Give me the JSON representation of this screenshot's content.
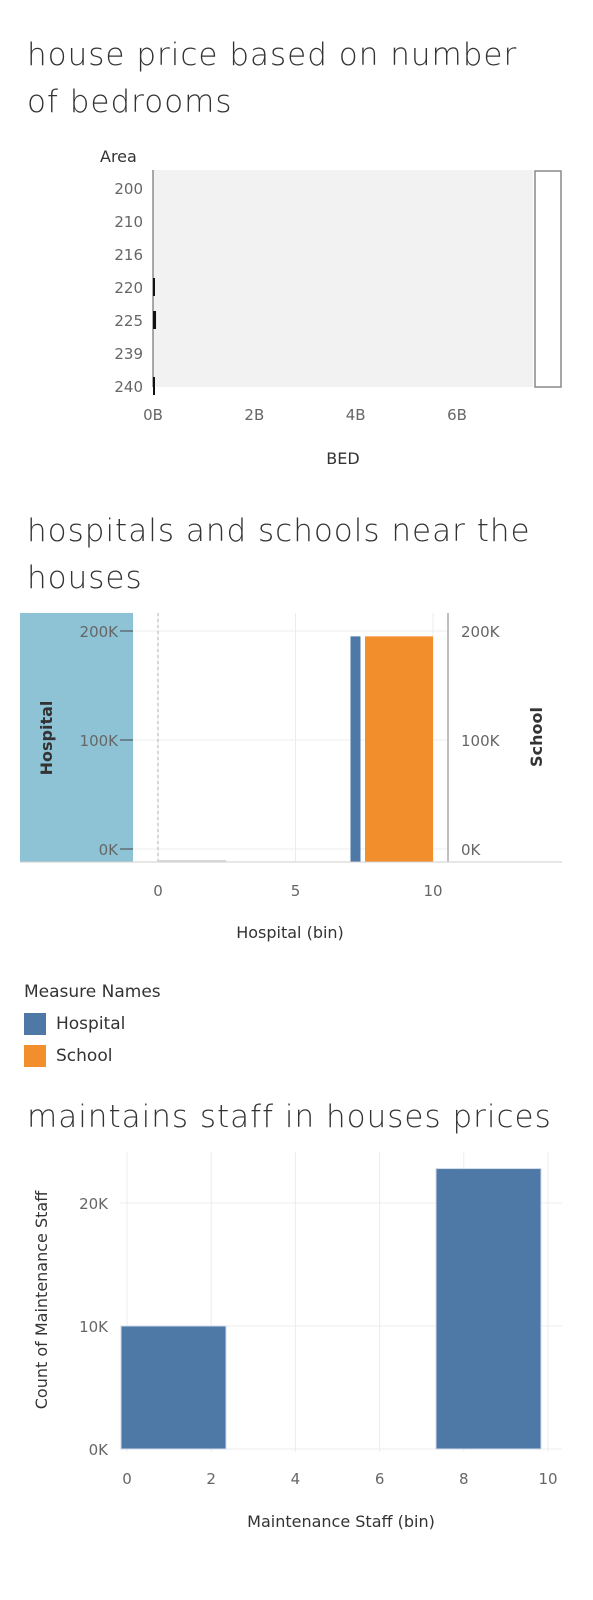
{
  "titles": {
    "chart1": "house price  based on number of bedrooms",
    "chart2": "hospitals and schools near the houses",
    "chart3": "maintains staff in houses prices"
  },
  "legend": {
    "title": "Measure Names",
    "items": [
      {
        "label": "Hospital",
        "color": "#4e79a7"
      },
      {
        "label": "School",
        "color": "#f28e2b"
      }
    ]
  },
  "chart_data": [
    {
      "type": "bar",
      "orientation": "horizontal",
      "title": "house price  based on number of bedrooms",
      "row_header": "Area",
      "categories": [
        "200",
        "210",
        "216",
        "220",
        "225",
        "239",
        "240"
      ],
      "xlabel": "BED",
      "xlim": [
        0,
        7500000000
      ],
      "xticks": [
        0,
        2000000000,
        4000000000,
        6000000000
      ],
      "xtick_labels": [
        "0B",
        "2B",
        "4B",
        "6B"
      ],
      "values": [
        0,
        0,
        0,
        20000000,
        60000000,
        0,
        20000000
      ],
      "grid": false
    },
    {
      "type": "bar",
      "title": "hospitals and schools near the houses",
      "xlabel": "Hospital (bin)",
      "xticks": [
        0,
        5,
        10
      ],
      "xlim": [
        -5,
        14
      ],
      "left_axis": {
        "label": "Hospital",
        "ylim": [
          0,
          210000
        ],
        "ticks": [
          "0K",
          "100K",
          "200K"
        ]
      },
      "right_axis": {
        "label": "School",
        "ylim": [
          0,
          210000
        ],
        "ticks": [
          "0K",
          "100K",
          "200K"
        ]
      },
      "series": [
        {
          "name": "Hospital",
          "bins": [
            0,
            7
          ],
          "bin_width": 2.5,
          "values": [
            1500,
            207000
          ]
        },
        {
          "name": "School",
          "bins": [
            7.3
          ],
          "bin_width": 2.7,
          "values": [
            207000
          ]
        }
      ],
      "legend": "bottom-left"
    },
    {
      "type": "bar",
      "title": "maintains staff in houses prices",
      "xlabel": "Maintenance Staff (bin)",
      "ylabel": "Count of Maintenance Staff",
      "xticks": [
        0,
        2,
        4,
        6,
        8,
        10
      ],
      "xlim": [
        -0.6,
        10.6
      ],
      "ylim": [
        0,
        24000
      ],
      "yticks": [
        "0K",
        "10K",
        "20K"
      ],
      "bins": [
        0,
        7.2
      ],
      "bin_width": 2.4,
      "values": [
        10000,
        22800
      ],
      "grid": true
    }
  ]
}
